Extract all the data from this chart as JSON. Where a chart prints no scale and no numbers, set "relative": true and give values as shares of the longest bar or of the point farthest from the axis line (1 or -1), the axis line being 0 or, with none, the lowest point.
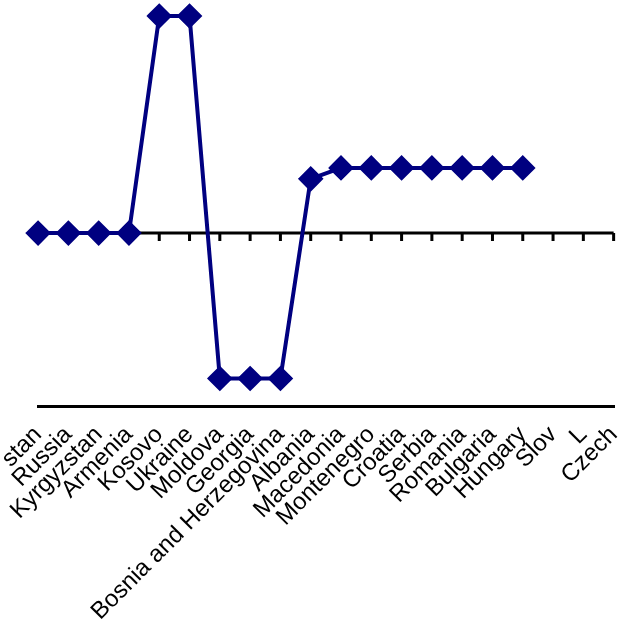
{
  "chart_data": {
    "type": "line",
    "relative": true,
    "marker": "diamond",
    "legend": false,
    "grid": false,
    "categories": [
      "stan",
      "Russia",
      "Kyrgyzstan",
      "Armenia",
      "Kosovo",
      "Ukraine",
      "Moldova",
      "Georgia",
      "Bosnia and Herzegovina",
      "Albania",
      "Macedonia",
      "Montenegro",
      "Croatia",
      "Serbia",
      "Romania",
      "Bulgaria",
      "Hungary",
      "Slov",
      "L",
      "Czech"
    ],
    "series": [
      {
        "color": "#000080",
        "values": [
          0,
          0,
          0,
          0,
          1,
          1,
          -0.67,
          -0.67,
          -0.67,
          0.25,
          0.3,
          0.3,
          0.3,
          0.3,
          0.3,
          0.3,
          0.3,
          null,
          null,
          null
        ]
      }
    ]
  }
}
